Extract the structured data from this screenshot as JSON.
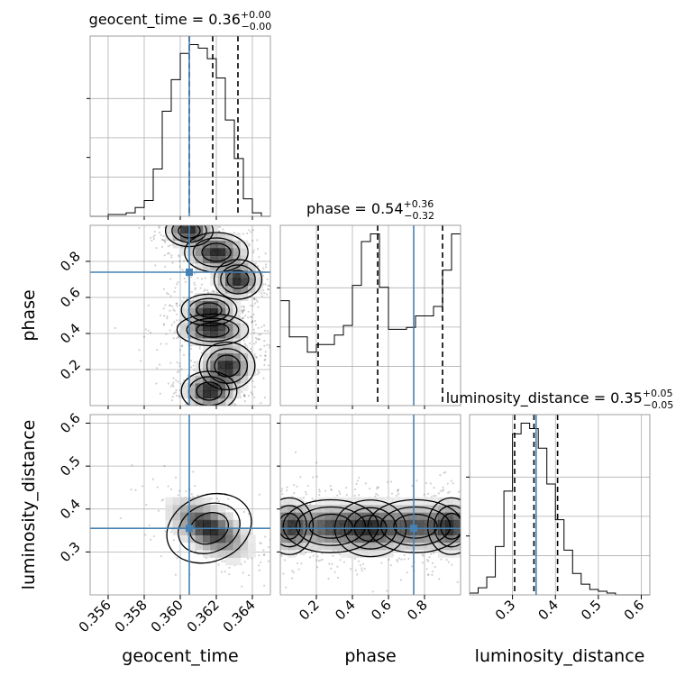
{
  "chart_data": {
    "type": "corner",
    "truth_color": "#4682b4",
    "params": [
      {
        "name": "geocent_time",
        "axis_label": "geocent_time",
        "range": [
          0.355,
          0.365
        ],
        "ticks": [
          0.356,
          0.358,
          0.36,
          0.362,
          0.364
        ],
        "tick_labels": [
          "0.356",
          "0.358",
          "0.360",
          "0.362",
          "0.364"
        ],
        "truth": 0.3605,
        "quantiles": [
          0.3605,
          0.3618,
          0.3632
        ],
        "title": {
          "name": "geocent_time",
          "median": "0.36",
          "plus": "+0.00",
          "minus": "−0.00"
        },
        "hist": {
          "edges_start": 0.355,
          "bin_width": 0.0005,
          "counts": [
            0,
            0,
            0.01,
            0.01,
            0.02,
            0.05,
            0.09,
            0.27,
            0.6,
            0.78,
            0.93,
            0.98,
            0.96,
            0.9,
            0.79,
            0.55,
            0.33,
            0.1,
            0.02,
            0.0
          ]
        }
      },
      {
        "name": "phase",
        "axis_label": "phase",
        "range": [
          0.0,
          1.0
        ],
        "ticks": [
          0.2,
          0.4,
          0.6,
          0.8
        ],
        "tick_labels": [
          "0.2",
          "0.4",
          "0.6",
          "0.8"
        ],
        "truth": 0.74,
        "quantiles": [
          0.21,
          0.54,
          0.9
        ],
        "title": {
          "name": "phase",
          "median": "0.54",
          "plus": "+0.36",
          "minus": "−0.32"
        },
        "hist": {
          "edges_start": 0.0,
          "bin_width": 0.05,
          "counts": [
            0.55,
            0.36,
            0.36,
            0.28,
            0.32,
            0.32,
            0.37,
            0.42,
            0.63,
            0.86,
            0.9,
            0.62,
            0.4,
            0.4,
            0.41,
            0.47,
            0.47,
            0.52,
            0.71,
            0.9
          ]
        }
      },
      {
        "name": "luminosity_distance",
        "axis_label": "luminosity_distance",
        "range": [
          0.2,
          0.62
        ],
        "ticks": [
          0.3,
          0.4,
          0.5,
          0.6
        ],
        "tick_labels": [
          "0.3",
          "0.4",
          "0.5",
          "0.6"
        ],
        "truth": 0.355,
        "quantiles": [
          0.305,
          0.35,
          0.405
        ],
        "title": {
          "name": "luminosity_distance",
          "median": "0.35",
          "plus": "+0.05",
          "minus": "−0.05"
        },
        "hist": {
          "edges_start": 0.2,
          "bin_width": 0.02,
          "counts": [
            0.01,
            0.04,
            0.1,
            0.27,
            0.58,
            0.9,
            0.96,
            0.93,
            0.82,
            0.62,
            0.42,
            0.25,
            0.12,
            0.06,
            0.03,
            0.02,
            0.01,
            0.0,
            0.0,
            0.0,
            0.0
          ]
        }
      }
    ],
    "pairs": [
      {
        "x_param": "geocent_time",
        "y_param": "phase",
        "modes": [
          {
            "x": 0.3605,
            "y": 0.97,
            "sx": 0.0006,
            "sy": 0.04
          },
          {
            "x": 0.362,
            "y": 0.85,
            "sx": 0.0008,
            "sy": 0.05
          },
          {
            "x": 0.3632,
            "y": 0.7,
            "sx": 0.0006,
            "sy": 0.05
          },
          {
            "x": 0.3616,
            "y": 0.53,
            "sx": 0.0007,
            "sy": 0.04
          },
          {
            "x": 0.3618,
            "y": 0.42,
            "sx": 0.0009,
            "sy": 0.04
          },
          {
            "x": 0.3626,
            "y": 0.22,
            "sx": 0.0007,
            "sy": 0.06
          },
          {
            "x": 0.3616,
            "y": 0.08,
            "sx": 0.0007,
            "sy": 0.05
          }
        ]
      },
      {
        "x_param": "geocent_time",
        "y_param": "luminosity_distance",
        "modes": [
          {
            "x": 0.3616,
            "y": 0.355,
            "sx": 0.0011,
            "sy": 0.035,
            "rho": -0.55
          }
        ]
      },
      {
        "x_param": "phase",
        "y_param": "luminosity_distance",
        "modes": [
          {
            "x": 0.05,
            "y": 0.36,
            "sx": 0.06,
            "sy": 0.03
          },
          {
            "x": 0.5,
            "y": 0.355,
            "sx": 0.09,
            "sy": 0.03
          },
          {
            "x": 0.95,
            "y": 0.36,
            "sx": 0.06,
            "sy": 0.03
          },
          {
            "x": 0.28,
            "y": 0.36,
            "sx": 0.12,
            "sy": 0.028
          },
          {
            "x": 0.75,
            "y": 0.36,
            "sx": 0.12,
            "sy": 0.028
          }
        ]
      }
    ],
    "grid": true
  }
}
